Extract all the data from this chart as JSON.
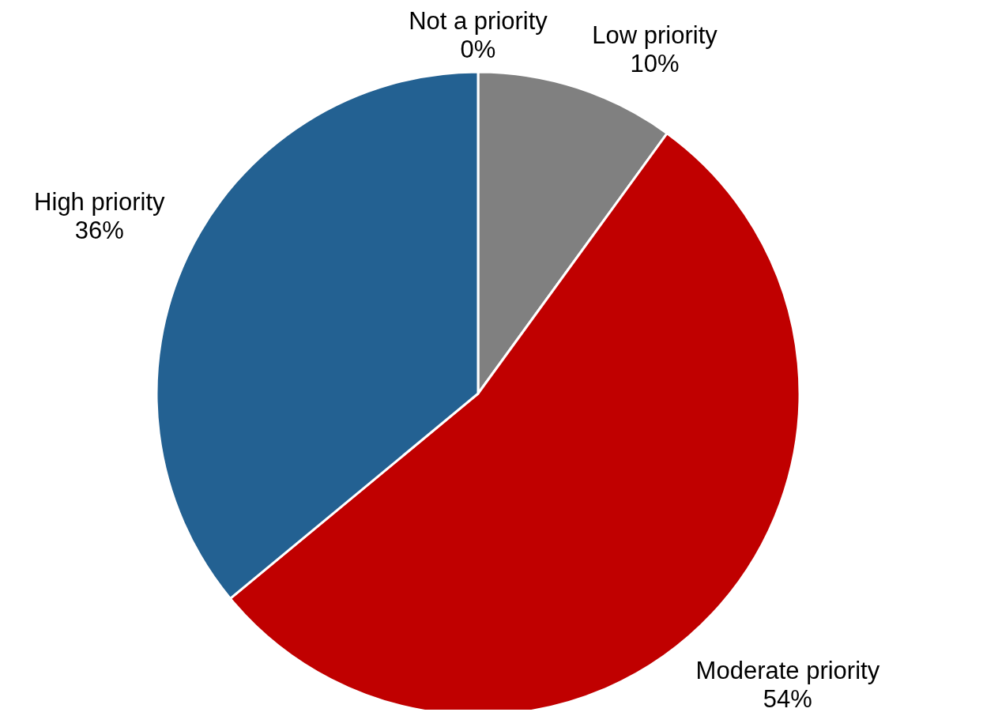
{
  "chart_data": {
    "type": "pie",
    "categories": [
      "Not a priority",
      "Low priority",
      "Moderate priority",
      "High priority"
    ],
    "values": [
      0,
      10,
      54,
      36
    ],
    "colors": [
      "#a6a6a6",
      "#808080",
      "#c00000",
      "#236192"
    ],
    "value_labels": [
      "0%",
      "10%",
      "54%",
      "36%"
    ]
  }
}
